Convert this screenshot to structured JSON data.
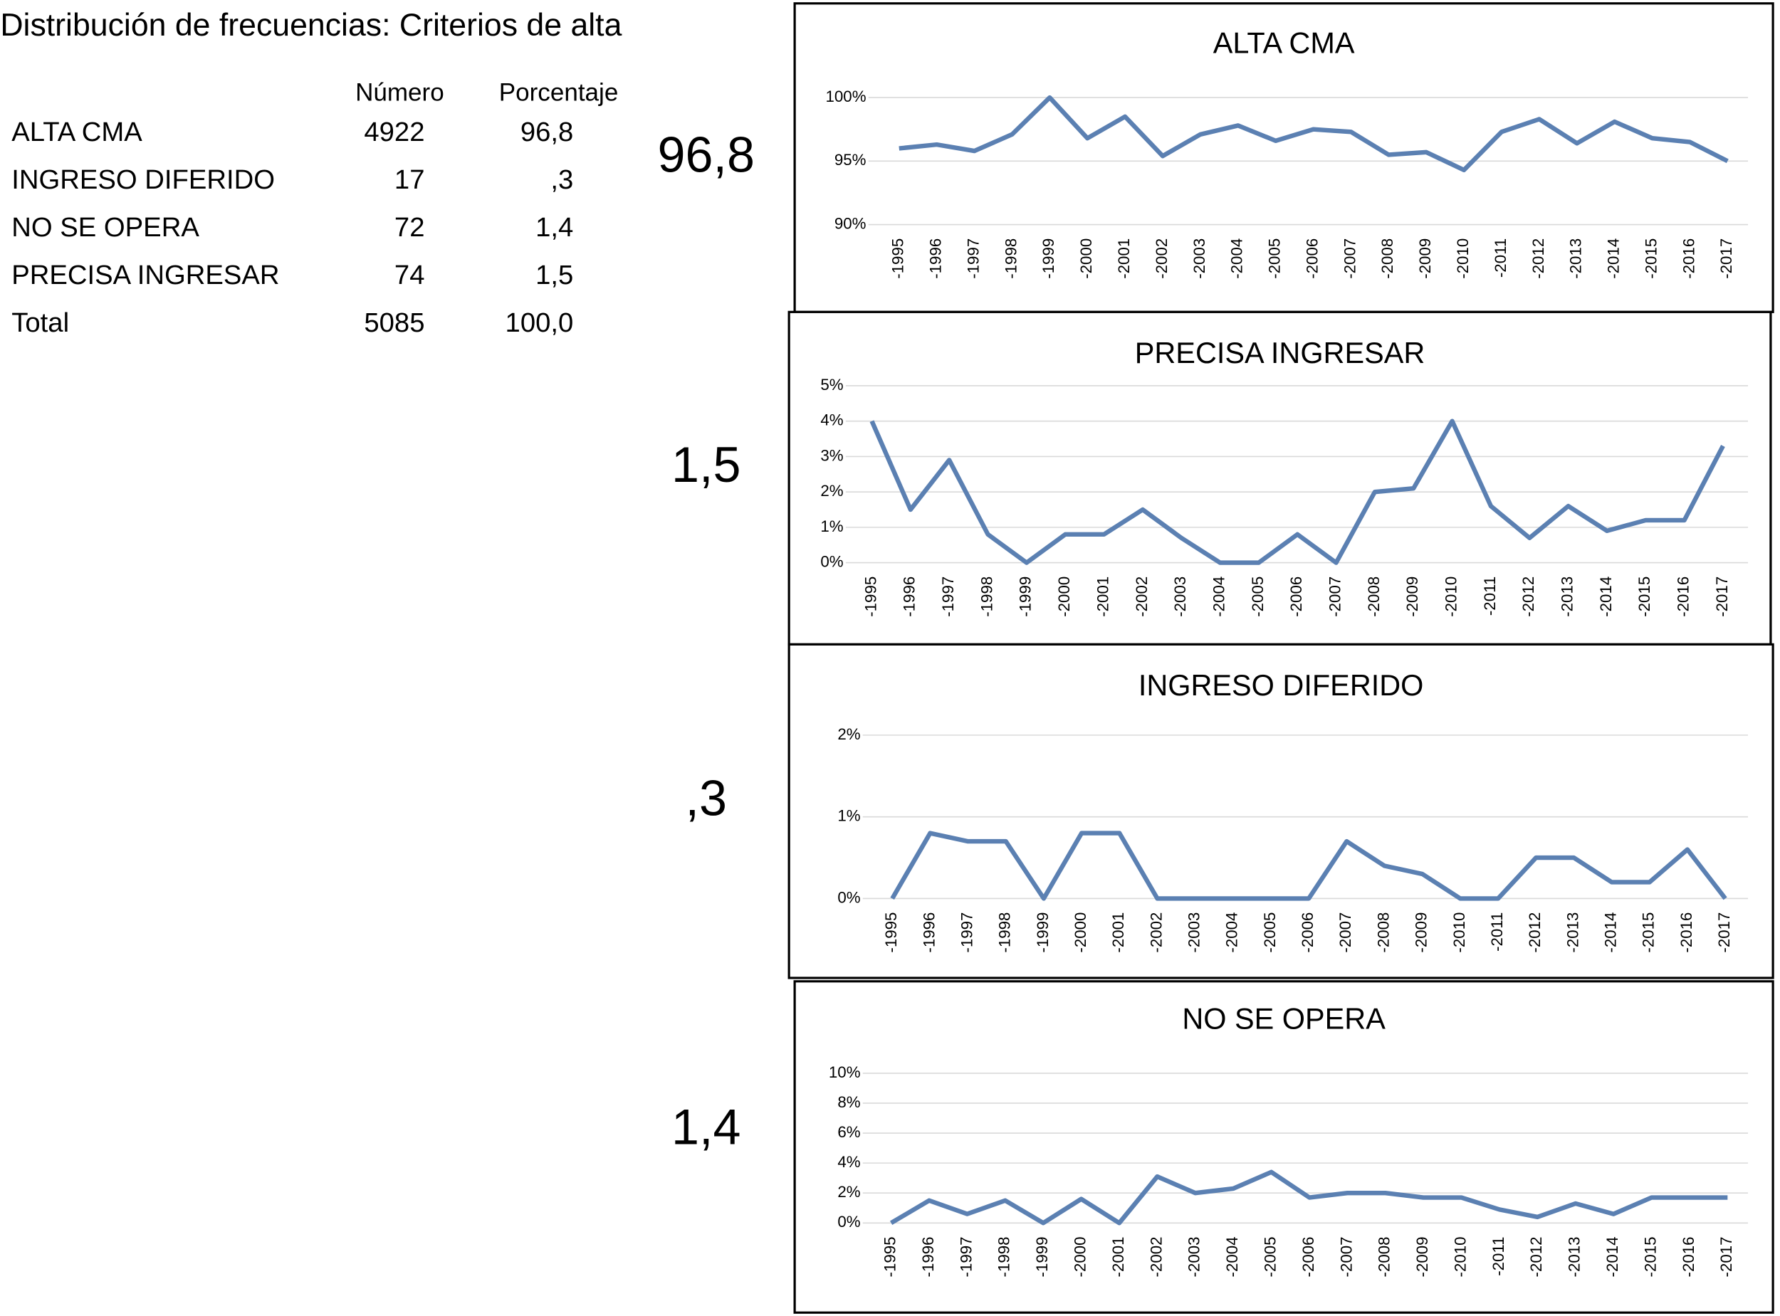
{
  "title": "Distribución de frecuencias: Criterios de alta",
  "table": {
    "header": [
      "Número",
      "Porcentaje"
    ],
    "rows": [
      [
        "ALTA CMA",
        "4922",
        "96,8"
      ],
      [
        "INGRESO DIFERIDO",
        "17",
        ",3"
      ],
      [
        "NO SE OPERA",
        "72",
        "1,4"
      ],
      [
        "PRECISA INGRESAR",
        "74",
        "1,5"
      ],
      [
        "Total",
        "5085",
        "100,0"
      ]
    ]
  },
  "side_labels": [
    "96,8",
    "1,5",
    ",3",
    "1,4"
  ],
  "chart_data": [
    {
      "type": "line",
      "title": "ALTA CMA",
      "categories": [
        "-1995",
        "-1996",
        "-1997",
        "-1998",
        "-1999",
        "-2000",
        "-2001",
        "-2002",
        "-2003",
        "-2004",
        "-2005",
        "-2006",
        "-2007",
        "-2008",
        "-2009",
        "-2010",
        "-2011",
        "-2012",
        "-2013",
        "-2014",
        "-2015",
        "-2016",
        "-2017"
      ],
      "values": [
        96.0,
        96.3,
        95.8,
        97.1,
        100,
        96.8,
        98.5,
        95.4,
        97.1,
        97.8,
        96.6,
        97.5,
        97.3,
        95.5,
        95.7,
        94.3,
        97.3,
        98.3,
        96.4,
        98.1,
        96.8,
        96.5,
        95.0
      ],
      "color": "#5b80b2",
      "ylim": [
        90,
        100
      ],
      "yticks": [
        {
          "value": 90,
          "label": "90%"
        },
        {
          "value": 95,
          "label": "95%"
        },
        {
          "value": 100,
          "label": "100%"
        }
      ],
      "grid": true
    },
    {
      "type": "line",
      "title": "PRECISA INGRESAR",
      "categories": [
        "-1995",
        "-1996",
        "-1997",
        "-1998",
        "-1999",
        "-2000",
        "-2001",
        "-2002",
        "-2003",
        "-2004",
        "-2005",
        "-2006",
        "-2007",
        "-2008",
        "-2009",
        "-2010",
        "-2011",
        "-2012",
        "-2013",
        "-2014",
        "-2015",
        "-2016",
        "-2017"
      ],
      "values": [
        4.0,
        1.5,
        2.9,
        0.8,
        0,
        0.8,
        0.8,
        1.5,
        0.7,
        0,
        0,
        0.8,
        0,
        2.0,
        2.1,
        4.0,
        1.6,
        0.7,
        1.6,
        0.9,
        1.2,
        1.2,
        3.3
      ],
      "color": "#5b80b2",
      "ylim": [
        0,
        5
      ],
      "yticks": [
        {
          "value": 0,
          "label": "0%"
        },
        {
          "value": 1,
          "label": "1%"
        },
        {
          "value": 2,
          "label": "2%"
        },
        {
          "value": 3,
          "label": "3%"
        },
        {
          "value": 4,
          "label": "4%"
        },
        {
          "value": 5,
          "label": "5%"
        }
      ],
      "grid": true
    },
    {
      "type": "line",
      "title": "INGRESO DIFERIDO",
      "categories": [
        "-1995",
        "-1996",
        "-1997",
        "-1998",
        "-1999",
        "-2000",
        "-2001",
        "-2002",
        "-2003",
        "-2004",
        "-2005",
        "-2006",
        "-2007",
        "-2008",
        "-2009",
        "-2010",
        "-2011",
        "-2012",
        "-2013",
        "-2014",
        "-2015",
        "-2016",
        "-2017"
      ],
      "values": [
        0,
        0.8,
        0.7,
        0.7,
        0,
        0.8,
        0.8,
        0,
        0,
        0,
        0,
        0,
        0.7,
        0.4,
        0.3,
        0,
        0,
        0.5,
        0.5,
        0.2,
        0.2,
        0.6,
        0
      ],
      "color": "#5b80b2",
      "ylim": [
        0,
        2
      ],
      "yticks": [
        {
          "value": 0,
          "label": "0%"
        },
        {
          "value": 1,
          "label": "1%"
        },
        {
          "value": 2,
          "label": "2%"
        }
      ],
      "grid": true
    },
    {
      "type": "line",
      "title": "NO SE OPERA",
      "categories": [
        "-1995",
        "-1996",
        "-1997",
        "-1998",
        "-1999",
        "-2000",
        "-2001",
        "-2002",
        "-2003",
        "-2004",
        "-2005",
        "-2006",
        "-2007",
        "-2008",
        "-2009",
        "-2010",
        "-2011",
        "-2012",
        "-2013",
        "-2014",
        "-2015",
        "-2016",
        "-2017"
      ],
      "values": [
        0,
        1.5,
        0.6,
        1.5,
        0,
        1.6,
        0,
        3.1,
        2.0,
        2.3,
        3.4,
        1.7,
        2.0,
        2.0,
        1.7,
        1.7,
        0.9,
        0.4,
        1.3,
        0.6,
        1.7,
        1.7,
        1.7
      ],
      "color": "#5b80b2",
      "ylim": [
        0,
        10
      ],
      "yticks": [
        {
          "value": 0,
          "label": "0%"
        },
        {
          "value": 2,
          "label": "2%"
        },
        {
          "value": 4,
          "label": "4%"
        },
        {
          "value": 6,
          "label": "6%"
        },
        {
          "value": 8,
          "label": "8%"
        },
        {
          "value": 10,
          "label": "10%"
        }
      ],
      "grid": true
    }
  ]
}
